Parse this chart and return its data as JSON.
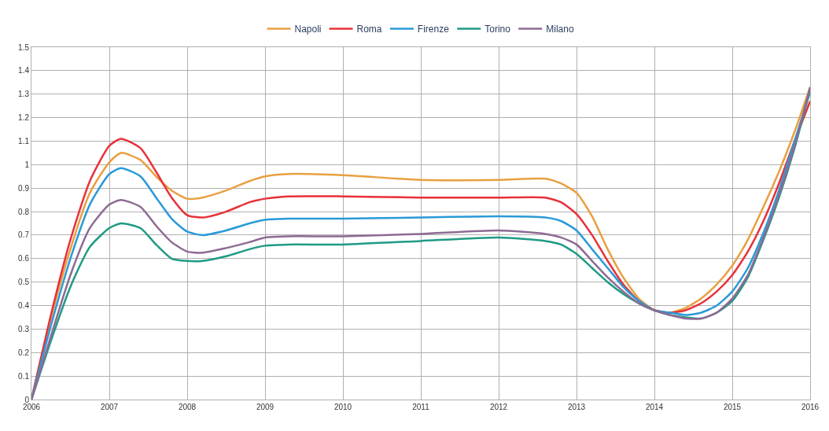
{
  "chart_data": {
    "type": "line",
    "x": [
      2006,
      2006.25,
      2006.5,
      2006.75,
      2007,
      2007.15,
      2007.4,
      2007.6,
      2007.8,
      2008,
      2008.2,
      2008.5,
      2008.8,
      2009,
      2009.3,
      2010,
      2011,
      2012,
      2012.6,
      2012.8,
      2013,
      2013.2,
      2013.4,
      2013.6,
      2013.8,
      2014,
      2014.2,
      2014.4,
      2014.6,
      2014.8,
      2015,
      2015.2,
      2015.4,
      2015.6,
      2015.8,
      2016
    ],
    "series": [
      {
        "name": "Napoli",
        "color": "#e8a040",
        "values": [
          0,
          0.345,
          0.64,
          0.88,
          1.01,
          1.05,
          1.02,
          0.95,
          0.89,
          0.855,
          0.86,
          0.89,
          0.93,
          0.95,
          0.96,
          0.955,
          0.935,
          0.935,
          0.94,
          0.92,
          0.88,
          0.78,
          0.64,
          0.52,
          0.43,
          0.38,
          0.37,
          0.39,
          0.43,
          0.49,
          0.57,
          0.68,
          0.82,
          0.97,
          1.14,
          1.33
        ]
      },
      {
        "name": "Roma",
        "color": "#e8303a",
        "values": [
          0,
          0.36,
          0.68,
          0.93,
          1.08,
          1.11,
          1.07,
          0.97,
          0.86,
          0.785,
          0.775,
          0.8,
          0.84,
          0.855,
          0.865,
          0.865,
          0.86,
          0.86,
          0.86,
          0.84,
          0.79,
          0.7,
          0.59,
          0.49,
          0.42,
          0.38,
          0.37,
          0.38,
          0.41,
          0.46,
          0.53,
          0.63,
          0.76,
          0.92,
          1.1,
          1.27
        ]
      },
      {
        "name": "Firenze",
        "color": "#2a9ad8",
        "values": [
          0,
          0.315,
          0.6,
          0.83,
          0.96,
          0.985,
          0.95,
          0.86,
          0.77,
          0.715,
          0.7,
          0.72,
          0.75,
          0.765,
          0.77,
          0.77,
          0.775,
          0.78,
          0.775,
          0.76,
          0.72,
          0.64,
          0.56,
          0.48,
          0.42,
          0.38,
          0.37,
          0.36,
          0.37,
          0.4,
          0.46,
          0.56,
          0.71,
          0.89,
          1.1,
          1.31
        ]
      },
      {
        "name": "Torino",
        "color": "#1f9a84",
        "values": [
          0,
          0.25,
          0.48,
          0.65,
          0.73,
          0.75,
          0.73,
          0.66,
          0.6,
          0.59,
          0.59,
          0.61,
          0.64,
          0.655,
          0.66,
          0.66,
          0.675,
          0.69,
          0.675,
          0.66,
          0.62,
          0.56,
          0.5,
          0.45,
          0.41,
          0.38,
          0.36,
          0.35,
          0.345,
          0.37,
          0.42,
          0.52,
          0.68,
          0.86,
          1.07,
          1.32
        ]
      },
      {
        "name": "Milano",
        "color": "#8e6a94",
        "values": [
          0,
          0.27,
          0.53,
          0.73,
          0.83,
          0.85,
          0.82,
          0.74,
          0.67,
          0.63,
          0.625,
          0.645,
          0.67,
          0.69,
          0.695,
          0.695,
          0.705,
          0.72,
          0.705,
          0.69,
          0.66,
          0.59,
          0.52,
          0.46,
          0.41,
          0.38,
          0.36,
          0.345,
          0.345,
          0.37,
          0.43,
          0.53,
          0.69,
          0.87,
          1.08,
          1.33
        ]
      }
    ],
    "xlim": [
      2006,
      2016
    ],
    "xticks": [
      2006,
      2007,
      2008,
      2009,
      2010,
      2011,
      2012,
      2013,
      2014,
      2015,
      2016
    ],
    "ylim": [
      0,
      1.5
    ],
    "yticks": [
      0,
      0.1,
      0.2,
      0.3,
      0.4,
      0.5,
      0.6,
      0.7,
      0.8,
      0.9,
      1,
      1.1,
      1.2,
      1.3,
      1.4,
      1.5
    ],
    "grid": true,
    "legend": "top",
    "marker": "none",
    "line_style": "solid"
  }
}
